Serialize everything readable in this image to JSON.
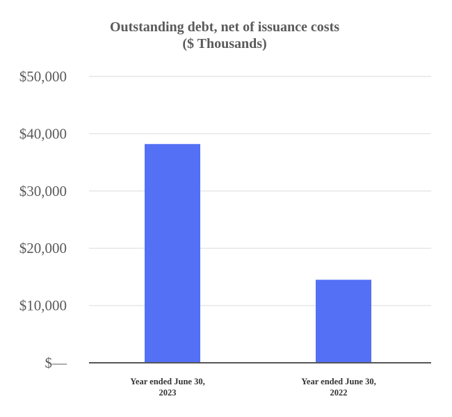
{
  "chart_data": {
    "type": "bar",
    "title": [
      "Outstanding debt, net of issuance costs",
      "($ Thousands)"
    ],
    "categories": [
      [
        "Year ended June 30,",
        "2023"
      ],
      [
        "Year ended June 30,",
        "2022"
      ]
    ],
    "values": [
      38200,
      14500
    ],
    "ylim": [
      0,
      50000
    ],
    "yticks": [
      0,
      10000,
      20000,
      30000,
      40000,
      50000
    ],
    "ytick_labels": [
      "$—",
      "$10,000",
      "$20,000",
      "$30,000",
      "$40,000",
      "$50,000"
    ],
    "grid": true,
    "legend": "none",
    "bar_color": "#5470f5"
  }
}
